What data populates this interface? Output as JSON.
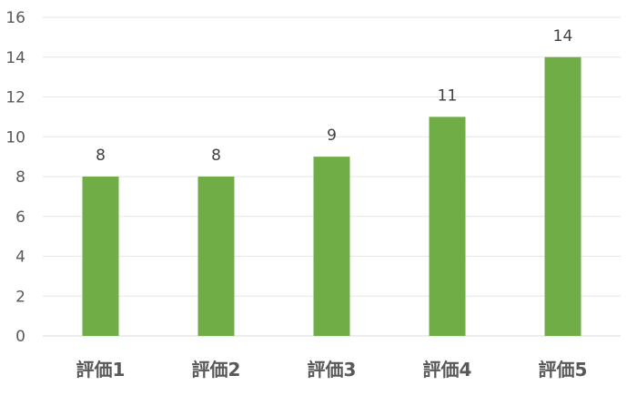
{
  "chart_data": {
    "type": "bar",
    "categories": [
      "評価1",
      "評価2",
      "評価3",
      "評価4",
      "評価5"
    ],
    "values": [
      8,
      8,
      9,
      11,
      14
    ],
    "data_labels": [
      "8",
      "8",
      "9",
      "11",
      "14"
    ],
    "title": "",
    "xlabel": "",
    "ylabel": "",
    "ylim": [
      0,
      16
    ],
    "yticks": [
      0,
      2,
      4,
      6,
      8,
      10,
      12,
      14,
      16
    ],
    "grid": true,
    "legend": "none",
    "bar_color": "#70ad47"
  }
}
